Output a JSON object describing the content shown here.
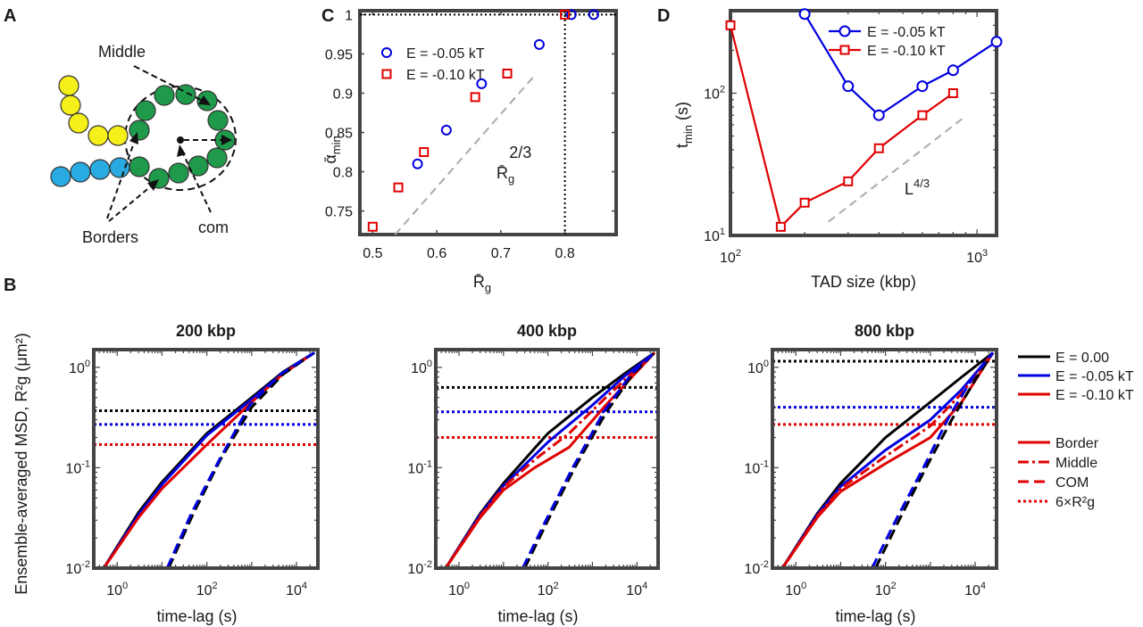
{
  "panels": {
    "A": {
      "letter": "A",
      "labels": {
        "middle": "Middle",
        "borders": "Borders",
        "com": "com"
      },
      "colors": {
        "yellow": "#f5ef1a",
        "blue": "#29abe2",
        "green": "#1e9a4a"
      }
    },
    "B": {
      "letter": "B"
    },
    "C": {
      "letter": "C"
    },
    "D": {
      "letter": "D"
    }
  },
  "chart_data": [
    {
      "id": "C",
      "type": "scatter",
      "xlabel": "R̄g",
      "ylabel": "ᾱmin",
      "xlim": [
        0.48,
        0.88
      ],
      "ylim": [
        0.72,
        1.005
      ],
      "xticks": [
        0.5,
        0.6,
        0.7,
        0.8
      ],
      "xtick_labels": [
        "0.5",
        "0.6",
        "0.7",
        "0.8"
      ],
      "yticks": [
        0.75,
        0.8,
        0.85,
        0.9,
        0.95,
        1.0
      ],
      "ytick_labels": [
        "0.75",
        "0.8",
        "0.85",
        "0.9",
        "0.95",
        "1"
      ],
      "series": [
        {
          "name": "E = -0.05 kT",
          "marker": "circle",
          "color": "#0000e0",
          "x": [
            0.57,
            0.615,
            0.67,
            0.76,
            0.81,
            0.845
          ],
          "y": [
            0.81,
            0.853,
            0.912,
            0.962,
            1.0,
            1.0
          ]
        },
        {
          "name": "E = -0.10 kT",
          "marker": "square",
          "color": "#e00000",
          "x": [
            0.5,
            0.54,
            0.58,
            0.66,
            0.71,
            0.8
          ],
          "y": [
            0.73,
            0.78,
            0.825,
            0.895,
            0.925,
            1.0
          ]
        }
      ],
      "guide": {
        "label": "R̄g",
        "exponent": "2/3",
        "x": [
          0.535,
          0.75
        ],
        "y": [
          0.72,
          0.92
        ]
      },
      "reference": {
        "h": 1.0,
        "v": 0.8
      }
    },
    {
      "id": "D",
      "type": "line",
      "xlabel": "TAD size (kbp)",
      "ylabel": "tmin (s)",
      "xscale": "log",
      "yscale": "log",
      "xlim": [
        100,
        1200
      ],
      "ylim": [
        10,
        380
      ],
      "xtick_labels": [
        "10^2",
        "10^3"
      ],
      "ytick_labels": [
        "10^1",
        "10^2"
      ],
      "series": [
        {
          "name": "E = -0.05 kT",
          "marker": "circle",
          "color": "#0000e0",
          "x": [
            200,
            300,
            400,
            600,
            800,
            1200
          ],
          "y": [
            360,
            112,
            70,
            112,
            145,
            230
          ]
        },
        {
          "name": "E = -0.10 kT",
          "marker": "square",
          "color": "#e00000",
          "x": [
            100,
            160,
            200,
            300,
            400,
            600,
            800
          ],
          "y": [
            300,
            11.5,
            17,
            24,
            41,
            70,
            100
          ]
        }
      ],
      "guide": {
        "label": "L",
        "exponent": "4/3",
        "x": [
          250,
          870
        ],
        "y": [
          12.5,
          66
        ]
      }
    },
    {
      "id": "B1",
      "type": "line",
      "title": "200 kbp",
      "xscale": "log",
      "yscale": "log",
      "xlim": [
        0.3,
        30000
      ],
      "ylim": [
        0.01,
        1.5
      ],
      "xlabel": "time-lag (s)",
      "ylabel": "Ensemble-averaged MSD, R²g (μm²)",
      "xtick_labels": [
        "10^0",
        "10^2",
        "10^4"
      ],
      "ytick_labels": [
        "10^-2",
        "10^-1",
        "10^0"
      ],
      "rg_levels": {
        "black": 0.37,
        "blue": 0.27,
        "red": 0.17
      },
      "series": [
        {
          "name": "E = 0.00 Border",
          "color": "#000000",
          "style": "solid",
          "x": [
            0.5,
            3,
            10,
            100,
            1000,
            5000,
            25000
          ],
          "y": [
            0.01,
            0.036,
            0.072,
            0.22,
            0.5,
            0.9,
            1.4
          ]
        },
        {
          "name": "E = -0.05 kT Border",
          "color": "#0000e0",
          "style": "solid",
          "x": [
            0.5,
            3,
            10,
            100,
            1000,
            5000,
            25000
          ],
          "y": [
            0.01,
            0.034,
            0.068,
            0.21,
            0.48,
            0.88,
            1.4
          ]
        },
        {
          "name": "E = -0.10 kT Border",
          "color": "#e00000",
          "style": "solid",
          "x": [
            0.5,
            3,
            10,
            100,
            1000,
            5000,
            25000
          ],
          "y": [
            0.01,
            0.032,
            0.062,
            0.17,
            0.45,
            0.86,
            1.4
          ]
        },
        {
          "name": "E = 0.00 COM",
          "color": "#000000",
          "style": "dash",
          "x": [
            14,
            50,
            200,
            1000,
            5000,
            25000
          ],
          "y": [
            0.01,
            0.035,
            0.12,
            0.4,
            0.85,
            1.4
          ]
        },
        {
          "name": "E = -0.05 kT COM",
          "color": "#0000e0",
          "style": "dash",
          "x": [
            13,
            45,
            190,
            900,
            4500,
            25000
          ],
          "y": [
            0.01,
            0.035,
            0.12,
            0.42,
            0.86,
            1.4
          ]
        }
      ]
    },
    {
      "id": "B2",
      "type": "line",
      "title": "400 kbp",
      "xscale": "log",
      "yscale": "log",
      "xlim": [
        0.3,
        30000
      ],
      "ylim": [
        0.01,
        1.5
      ],
      "xlabel": "time-lag (s)",
      "xtick_labels": [
        "10^0",
        "10^2",
        "10^4"
      ],
      "ytick_labels": [
        "10^-2",
        "10^-1",
        "10^0"
      ],
      "rg_levels": {
        "black": 0.63,
        "blue": 0.36,
        "red": 0.2
      },
      "series": [
        {
          "name": "E = 0.00 Border",
          "color": "#000000",
          "style": "solid",
          "x": [
            0.5,
            3,
            10,
            100,
            1000,
            5000,
            25000
          ],
          "y": [
            0.01,
            0.035,
            0.07,
            0.22,
            0.5,
            0.85,
            1.4
          ]
        },
        {
          "name": "E = -0.05 kT Border",
          "color": "#0000e0",
          "style": "solid",
          "x": [
            0.5,
            3,
            10,
            100,
            1000,
            5000,
            25000
          ],
          "y": [
            0.01,
            0.034,
            0.066,
            0.18,
            0.42,
            0.8,
            1.4
          ]
        },
        {
          "name": "E = -0.10 kT Border",
          "color": "#e00000",
          "style": "solid",
          "x": [
            0.5,
            3,
            10,
            50,
            300,
            2000,
            25000
          ],
          "y": [
            0.01,
            0.032,
            0.06,
            0.1,
            0.16,
            0.42,
            1.4
          ]
        },
        {
          "name": "E = -0.10 kT Middle",
          "color": "#e00000",
          "style": "dashdot",
          "x": [
            0.5,
            3,
            10,
            50,
            300,
            2000,
            25000
          ],
          "y": [
            0.01,
            0.033,
            0.064,
            0.12,
            0.22,
            0.5,
            1.4
          ]
        },
        {
          "name": "E = 0.00 COM",
          "color": "#000000",
          "style": "dash",
          "x": [
            30,
            100,
            400,
            2000,
            8000,
            25000
          ],
          "y": [
            0.01,
            0.03,
            0.1,
            0.35,
            0.85,
            1.4
          ]
        },
        {
          "name": "E = -0.05 kT COM",
          "color": "#0000e0",
          "style": "dash",
          "x": [
            27,
            90,
            360,
            1800,
            7500,
            25000
          ],
          "y": [
            0.01,
            0.03,
            0.1,
            0.36,
            0.86,
            1.4
          ]
        }
      ]
    },
    {
      "id": "B3",
      "type": "line",
      "title": "800 kbp",
      "xscale": "log",
      "yscale": "log",
      "xlim": [
        0.3,
        30000
      ],
      "ylim": [
        0.01,
        1.5
      ],
      "xlabel": "time-lag (s)",
      "xtick_labels": [
        "10^0",
        "10^2",
        "10^4"
      ],
      "ytick_labels": [
        "10^-2",
        "10^-1",
        "10^0"
      ],
      "rg_levels": {
        "black": 1.15,
        "blue": 0.4,
        "red": 0.27
      },
      "series": [
        {
          "name": "E = 0.00 Border",
          "color": "#000000",
          "style": "solid",
          "x": [
            0.5,
            3,
            10,
            100,
            1000,
            5000,
            25000
          ],
          "y": [
            0.01,
            0.035,
            0.07,
            0.2,
            0.45,
            0.8,
            1.4
          ]
        },
        {
          "name": "E = -0.05 kT Border",
          "color": "#0000e0",
          "style": "solid",
          "x": [
            0.5,
            3,
            10,
            100,
            1000,
            5000,
            25000
          ],
          "y": [
            0.01,
            0.034,
            0.065,
            0.15,
            0.3,
            0.6,
            1.4
          ]
        },
        {
          "name": "E = -0.10 kT Border",
          "color": "#e00000",
          "style": "solid",
          "x": [
            0.5,
            3,
            10,
            100,
            1000,
            5000,
            25000
          ],
          "y": [
            0.01,
            0.032,
            0.058,
            0.11,
            0.2,
            0.45,
            1.4
          ]
        },
        {
          "name": "E = -0.10 kT Middle",
          "color": "#e00000",
          "style": "dashdot",
          "x": [
            0.5,
            3,
            10,
            100,
            1000,
            5000,
            25000
          ],
          "y": [
            0.01,
            0.033,
            0.062,
            0.13,
            0.26,
            0.55,
            1.4
          ]
        },
        {
          "name": "E = 0.00 COM",
          "color": "#000000",
          "style": "dash",
          "x": [
            60,
            200,
            800,
            3000,
            10000,
            25000
          ],
          "y": [
            0.01,
            0.03,
            0.1,
            0.3,
            0.75,
            1.4
          ]
        },
        {
          "name": "E = -0.05 kT COM",
          "color": "#0000e0",
          "style": "dash",
          "x": [
            50,
            170,
            700,
            2600,
            9000,
            25000
          ],
          "y": [
            0.01,
            0.03,
            0.1,
            0.32,
            0.8,
            1.4
          ]
        }
      ]
    }
  ],
  "legend_B": {
    "colors": [
      {
        "label": "E = 0.00",
        "color": "#000000"
      },
      {
        "label": "E = -0.05 kT",
        "color": "#0000e0"
      },
      {
        "label": "E = -0.10 kT",
        "color": "#e00000"
      }
    ],
    "styles": [
      {
        "label": "Border",
        "style": "solid"
      },
      {
        "label": "Middle",
        "style": "dashdot"
      },
      {
        "label": "COM",
        "style": "dash"
      },
      {
        "label": "6×R²g",
        "style": "dot"
      }
    ]
  }
}
